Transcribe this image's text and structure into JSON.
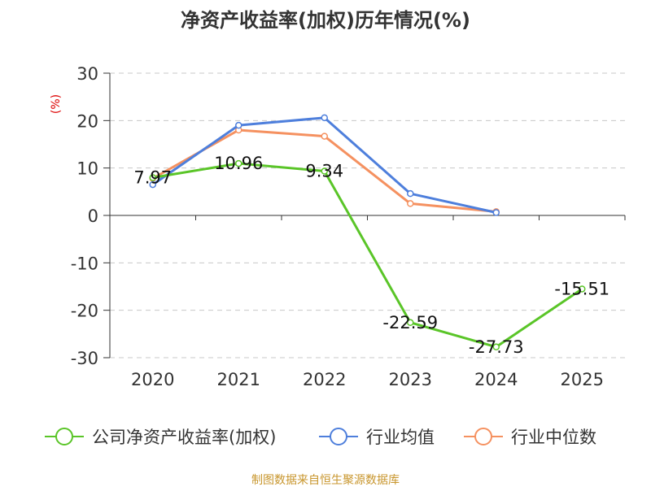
{
  "page": {
    "title": "净资产收益率(加权)历年情况(%)",
    "source": "制图数据来自恒生聚源数据库"
  },
  "colors": {
    "company": "#5ac528",
    "industry_avg": "#4e7fdc",
    "industry_median": "#f59160",
    "axis": "#333333",
    "grid": "#c8c8c8",
    "unit_label": "#dd0000",
    "source": "#c8962d",
    "title": "#333333"
  },
  "chart_data": {
    "type": "line",
    "title": "净资产收益率(加权)历年情况(%)",
    "ylabel": "(%)",
    "xlabel": "",
    "categories": [
      "2020",
      "2021",
      "2022",
      "2023",
      "2024",
      "2025"
    ],
    "ylim": [
      -30,
      30
    ],
    "yticks": [
      30,
      20,
      10,
      0,
      -10,
      -20,
      -30
    ],
    "grid": true,
    "legend_position": "bottom",
    "series": [
      {
        "name": "公司净资产收益率(加权)",
        "color_key": "company",
        "values": [
          7.97,
          10.96,
          9.34,
          -22.59,
          -27.73,
          -15.51
        ],
        "labels": [
          "7.97",
          "10.96",
          "9.34",
          "-22.59",
          "-27.73",
          "-15.51"
        ]
      },
      {
        "name": "行业均值",
        "color_key": "industry_avg",
        "values": [
          6.5,
          19.0,
          20.6,
          4.6,
          0.6,
          null
        ],
        "labels": null
      },
      {
        "name": "行业中位数",
        "color_key": "industry_median",
        "values": [
          7.8,
          18.0,
          16.7,
          2.5,
          0.8,
          null
        ],
        "labels": null
      }
    ]
  }
}
